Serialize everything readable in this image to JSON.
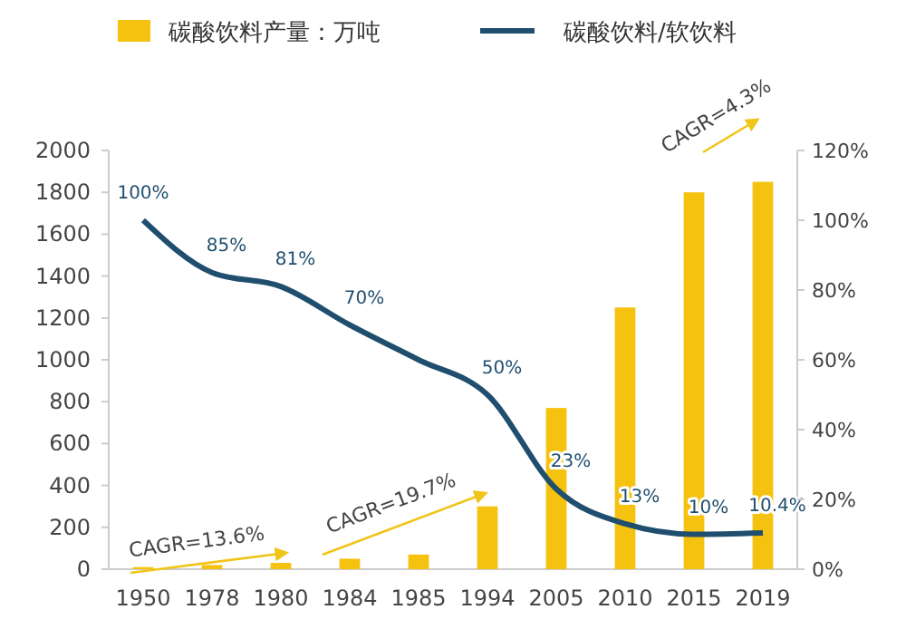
{
  "chart_data": {
    "type": "bar",
    "categories": [
      "1950",
      "1978",
      "1980",
      "1984",
      "1985",
      "1994",
      "2005",
      "2010",
      "2015",
      "2019"
    ],
    "series": [
      {
        "name": "碳酸饮料产量：万吨",
        "color": "#f5c20f",
        "values": [
          10,
          20,
          30,
          50,
          70,
          300,
          770,
          1250,
          1800,
          1850
        ]
      },
      {
        "name": "碳酸饮料/软饮料",
        "type": "line",
        "axis": "y2",
        "color": "#1f4e6e",
        "values": [
          100,
          85,
          81,
          70,
          60,
          50,
          23,
          13,
          10,
          10.4
        ],
        "value_labels": [
          "100%",
          "85%",
          "81%",
          "70%",
          null,
          "50%",
          "23%",
          "13%",
          "10%",
          "10.4%"
        ]
      }
    ],
    "ylim": [
      0,
      2000
    ],
    "yticks": [
      0,
      200,
      400,
      600,
      800,
      1000,
      1200,
      1400,
      1600,
      1800,
      2000
    ],
    "y2lim": [
      0,
      120
    ],
    "y2ticks": [
      {
        "value": 0,
        "label": "0%"
      },
      {
        "value": 20,
        "label": "20%"
      },
      {
        "value": 40,
        "label": "40%"
      },
      {
        "value": 60,
        "label": "60%"
      },
      {
        "value": 80,
        "label": "80%"
      },
      {
        "value": 100,
        "label": "100%"
      },
      {
        "value": 120,
        "label": "120%"
      }
    ],
    "annotations": [
      "CAGR=13.6%",
      "CAGR=19.7%",
      "CAGR=4.3%"
    ],
    "legend": "top",
    "grid": false,
    "marker": "none",
    "line_style": "solid"
  }
}
